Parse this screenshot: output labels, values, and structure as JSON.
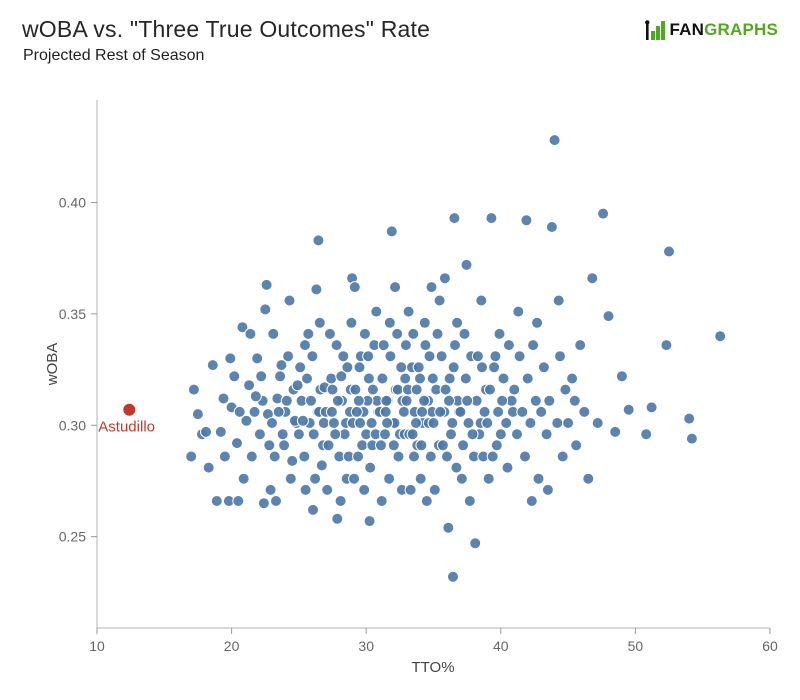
{
  "header": {
    "title": "wOBA vs. \"Three True Outcomes\" Rate",
    "subtitle": "Projected Rest of Season",
    "logo": {
      "part1": "FAN",
      "part2": "GRAPHS",
      "green": "#52a821",
      "black": "#111111"
    }
  },
  "chart_data": {
    "type": "scatter",
    "title": "wOBA vs. \"Three True Outcomes\" Rate",
    "subtitle": "Projected Rest of Season",
    "xlabel": "TTO%",
    "ylabel": "wOBA",
    "xlim": [
      10,
      60
    ],
    "ylim": [
      0.209,
      0.446
    ],
    "xticks": [
      10,
      20,
      30,
      40,
      50,
      60
    ],
    "yticks": [
      0.25,
      0.3,
      0.35,
      0.4
    ],
    "grid": false,
    "legend": "none",
    "point_color": "#4e79a7",
    "point_stroke": "#ffffff",
    "axis_color": "#b3b3b3",
    "highlight": {
      "label": "Astudillo",
      "x": 12.4,
      "y": 0.307,
      "color": "#c0392b"
    },
    "points": [
      [
        17.0,
        0.286
      ],
      [
        17.2,
        0.316
      ],
      [
        17.8,
        0.296
      ],
      [
        18.3,
        0.281
      ],
      [
        18.6,
        0.327
      ],
      [
        18.9,
        0.266
      ],
      [
        17.5,
        0.305
      ],
      [
        18.1,
        0.297
      ],
      [
        19.2,
        0.297
      ],
      [
        19.5,
        0.286
      ],
      [
        19.8,
        0.266
      ],
      [
        20.0,
        0.308
      ],
      [
        20.2,
        0.322
      ],
      [
        20.4,
        0.292
      ],
      [
        20.6,
        0.306
      ],
      [
        20.8,
        0.344
      ],
      [
        19.4,
        0.312
      ],
      [
        20.9,
        0.276
      ],
      [
        19.9,
        0.33
      ],
      [
        20.5,
        0.266
      ],
      [
        21.1,
        0.302
      ],
      [
        21.3,
        0.318
      ],
      [
        21.5,
        0.286
      ],
      [
        21.7,
        0.306
      ],
      [
        21.9,
        0.33
      ],
      [
        22.1,
        0.296
      ],
      [
        22.3,
        0.311
      ],
      [
        22.5,
        0.352
      ],
      [
        22.7,
        0.305
      ],
      [
        22.9,
        0.271
      ],
      [
        21.4,
        0.341
      ],
      [
        22.2,
        0.322
      ],
      [
        22.8,
        0.291
      ],
      [
        21.8,
        0.313
      ],
      [
        22.4,
        0.265
      ],
      [
        22.6,
        0.363
      ],
      [
        23.0,
        0.301
      ],
      [
        23.2,
        0.286
      ],
      [
        23.4,
        0.312
      ],
      [
        23.6,
        0.322
      ],
      [
        23.8,
        0.296
      ],
      [
        24.0,
        0.306
      ],
      [
        24.2,
        0.331
      ],
      [
        24.4,
        0.276
      ],
      [
        24.6,
        0.316
      ],
      [
        24.8,
        0.301
      ],
      [
        23.1,
        0.341
      ],
      [
        23.3,
        0.266
      ],
      [
        23.5,
        0.306
      ],
      [
        23.7,
        0.327
      ],
      [
        23.9,
        0.291
      ],
      [
        24.1,
        0.311
      ],
      [
        24.3,
        0.356
      ],
      [
        24.5,
        0.284
      ],
      [
        24.7,
        0.302
      ],
      [
        24.9,
        0.318
      ],
      [
        25.0,
        0.296
      ],
      [
        25.2,
        0.311
      ],
      [
        25.4,
        0.286
      ],
      [
        25.6,
        0.321
      ],
      [
        25.8,
        0.301
      ],
      [
        26.0,
        0.331
      ],
      [
        26.2,
        0.276
      ],
      [
        26.4,
        0.306
      ],
      [
        26.6,
        0.316
      ],
      [
        26.8,
        0.291
      ],
      [
        25.1,
        0.326
      ],
      [
        25.3,
        0.302
      ],
      [
        25.5,
        0.271
      ],
      [
        25.7,
        0.341
      ],
      [
        25.9,
        0.311
      ],
      [
        26.1,
        0.296
      ],
      [
        26.3,
        0.361
      ],
      [
        26.5,
        0.306
      ],
      [
        26.7,
        0.282
      ],
      [
        26.9,
        0.317
      ],
      [
        25.45,
        0.336
      ],
      [
        26.05,
        0.262
      ],
      [
        26.55,
        0.346
      ],
      [
        26.85,
        0.301
      ],
      [
        26.45,
        0.383
      ],
      [
        27.0,
        0.306
      ],
      [
        27.2,
        0.291
      ],
      [
        27.4,
        0.321
      ],
      [
        27.6,
        0.301
      ],
      [
        27.8,
        0.336
      ],
      [
        28.0,
        0.286
      ],
      [
        28.2,
        0.311
      ],
      [
        28.4,
        0.296
      ],
      [
        28.6,
        0.326
      ],
      [
        28.8,
        0.306
      ],
      [
        27.1,
        0.271
      ],
      [
        27.3,
        0.341
      ],
      [
        27.5,
        0.316
      ],
      [
        27.7,
        0.296
      ],
      [
        27.9,
        0.311
      ],
      [
        28.1,
        0.266
      ],
      [
        28.3,
        0.331
      ],
      [
        28.5,
        0.301
      ],
      [
        28.7,
        0.286
      ],
      [
        28.9,
        0.346
      ],
      [
        27.45,
        0.306
      ],
      [
        28.15,
        0.322
      ],
      [
        28.55,
        0.276
      ],
      [
        28.85,
        0.316
      ],
      [
        27.85,
        0.258
      ],
      [
        28.95,
        0.366
      ],
      [
        29.0,
        0.301
      ],
      [
        29.2,
        0.316
      ],
      [
        29.4,
        0.286
      ],
      [
        29.6,
        0.331
      ],
      [
        29.8,
        0.306
      ],
      [
        30.0,
        0.296
      ],
      [
        30.2,
        0.321
      ],
      [
        30.4,
        0.301
      ],
      [
        30.6,
        0.336
      ],
      [
        30.8,
        0.311
      ],
      [
        29.1,
        0.276
      ],
      [
        29.3,
        0.306
      ],
      [
        29.5,
        0.326
      ],
      [
        29.7,
        0.291
      ],
      [
        29.9,
        0.341
      ],
      [
        30.1,
        0.311
      ],
      [
        30.3,
        0.281
      ],
      [
        30.5,
        0.316
      ],
      [
        30.7,
        0.296
      ],
      [
        30.9,
        0.306
      ],
      [
        29.15,
        0.362
      ],
      [
        29.55,
        0.301
      ],
      [
        29.85,
        0.271
      ],
      [
        30.15,
        0.331
      ],
      [
        30.45,
        0.291
      ],
      [
        30.75,
        0.351
      ],
      [
        30.25,
        0.257
      ],
      [
        29.45,
        0.311
      ],
      [
        31.0,
        0.306
      ],
      [
        31.2,
        0.321
      ],
      [
        31.4,
        0.296
      ],
      [
        31.6,
        0.311
      ],
      [
        31.8,
        0.331
      ],
      [
        32.0,
        0.301
      ],
      [
        32.2,
        0.316
      ],
      [
        32.4,
        0.286
      ],
      [
        32.6,
        0.326
      ],
      [
        32.8,
        0.306
      ],
      [
        31.1,
        0.291
      ],
      [
        31.3,
        0.336
      ],
      [
        31.5,
        0.311
      ],
      [
        31.7,
        0.276
      ],
      [
        31.9,
        0.387
      ],
      [
        32.1,
        0.301
      ],
      [
        32.3,
        0.341
      ],
      [
        32.5,
        0.296
      ],
      [
        32.7,
        0.311
      ],
      [
        32.9,
        0.321
      ],
      [
        31.15,
        0.266
      ],
      [
        31.45,
        0.306
      ],
      [
        31.75,
        0.346
      ],
      [
        32.05,
        0.291
      ],
      [
        32.35,
        0.316
      ],
      [
        32.65,
        0.271
      ],
      [
        32.95,
        0.336
      ],
      [
        31.55,
        0.301
      ],
      [
        32.15,
        0.362
      ],
      [
        32.85,
        0.296
      ],
      [
        33.0,
        0.311
      ],
      [
        33.2,
        0.296
      ],
      [
        33.4,
        0.326
      ],
      [
        33.6,
        0.306
      ],
      [
        33.8,
        0.291
      ],
      [
        34.0,
        0.321
      ],
      [
        34.2,
        0.301
      ],
      [
        34.4,
        0.336
      ],
      [
        34.6,
        0.311
      ],
      [
        34.8,
        0.286
      ],
      [
        33.1,
        0.316
      ],
      [
        33.3,
        0.271
      ],
      [
        33.5,
        0.341
      ],
      [
        33.7,
        0.301
      ],
      [
        33.9,
        0.326
      ],
      [
        34.1,
        0.291
      ],
      [
        34.3,
        0.311
      ],
      [
        34.5,
        0.266
      ],
      [
        34.7,
        0.331
      ],
      [
        34.9,
        0.306
      ],
      [
        33.15,
        0.351
      ],
      [
        33.45,
        0.296
      ],
      [
        33.75,
        0.316
      ],
      [
        34.05,
        0.276
      ],
      [
        34.35,
        0.346
      ],
      [
        34.65,
        0.301
      ],
      [
        34.95,
        0.321
      ],
      [
        33.55,
        0.286
      ],
      [
        34.15,
        0.306
      ],
      [
        34.85,
        0.362
      ],
      [
        35.0,
        0.301
      ],
      [
        35.2,
        0.316
      ],
      [
        35.4,
        0.291
      ],
      [
        35.6,
        0.331
      ],
      [
        35.8,
        0.306
      ],
      [
        36.0,
        0.286
      ],
      [
        36.2,
        0.321
      ],
      [
        36.4,
        0.301
      ],
      [
        36.6,
        0.336
      ],
      [
        36.8,
        0.311
      ],
      [
        35.1,
        0.271
      ],
      [
        35.3,
        0.341
      ],
      [
        35.5,
        0.306
      ],
      [
        35.7,
        0.291
      ],
      [
        35.9,
        0.316
      ],
      [
        36.1,
        0.254
      ],
      [
        36.3,
        0.296
      ],
      [
        36.5,
        0.326
      ],
      [
        36.7,
        0.281
      ],
      [
        36.9,
        0.306
      ],
      [
        35.45,
        0.356
      ],
      [
        35.85,
        0.366
      ],
      [
        36.15,
        0.311
      ],
      [
        36.45,
        0.232
      ],
      [
        36.75,
        0.346
      ],
      [
        36.55,
        0.393
      ],
      [
        37.0,
        0.306
      ],
      [
        37.2,
        0.291
      ],
      [
        37.4,
        0.321
      ],
      [
        37.6,
        0.301
      ],
      [
        37.8,
        0.331
      ],
      [
        38.0,
        0.286
      ],
      [
        38.2,
        0.311
      ],
      [
        38.4,
        0.296
      ],
      [
        38.6,
        0.326
      ],
      [
        38.8,
        0.306
      ],
      [
        37.1,
        0.276
      ],
      [
        37.3,
        0.341
      ],
      [
        37.5,
        0.311
      ],
      [
        37.7,
        0.266
      ],
      [
        37.9,
        0.296
      ],
      [
        38.1,
        0.247
      ],
      [
        38.3,
        0.331
      ],
      [
        38.5,
        0.301
      ],
      [
        38.7,
        0.286
      ],
      [
        38.9,
        0.316
      ],
      [
        37.45,
        0.372
      ],
      [
        38.55,
        0.356
      ],
      [
        39.0,
        0.301
      ],
      [
        39.2,
        0.316
      ],
      [
        39.4,
        0.286
      ],
      [
        39.6,
        0.331
      ],
      [
        39.8,
        0.306
      ],
      [
        40.0,
        0.296
      ],
      [
        40.2,
        0.321
      ],
      [
        40.4,
        0.301
      ],
      [
        40.6,
        0.336
      ],
      [
        40.8,
        0.311
      ],
      [
        39.1,
        0.276
      ],
      [
        39.3,
        0.393
      ],
      [
        39.5,
        0.326
      ],
      [
        39.7,
        0.291
      ],
      [
        39.9,
        0.341
      ],
      [
        40.1,
        0.311
      ],
      [
        40.5,
        0.281
      ],
      [
        40.9,
        0.306
      ],
      [
        41.0,
        0.316
      ],
      [
        41.2,
        0.296
      ],
      [
        41.4,
        0.331
      ],
      [
        41.6,
        0.306
      ],
      [
        41.8,
        0.286
      ],
      [
        42.0,
        0.321
      ],
      [
        42.2,
        0.301
      ],
      [
        42.4,
        0.336
      ],
      [
        42.6,
        0.311
      ],
      [
        42.8,
        0.276
      ],
      [
        41.3,
        0.351
      ],
      [
        41.9,
        0.392
      ],
      [
        42.3,
        0.266
      ],
      [
        42.7,
        0.346
      ],
      [
        43.0,
        0.306
      ],
      [
        43.2,
        0.326
      ],
      [
        43.4,
        0.296
      ],
      [
        43.6,
        0.311
      ],
      [
        43.8,
        0.389
      ],
      [
        44.0,
        0.428
      ],
      [
        44.2,
        0.301
      ],
      [
        44.4,
        0.331
      ],
      [
        44.6,
        0.286
      ],
      [
        44.8,
        0.316
      ],
      [
        43.5,
        0.271
      ],
      [
        44.3,
        0.356
      ],
      [
        45.0,
        0.301
      ],
      [
        45.3,
        0.321
      ],
      [
        45.6,
        0.291
      ],
      [
        45.9,
        0.336
      ],
      [
        46.2,
        0.306
      ],
      [
        46.5,
        0.276
      ],
      [
        46.8,
        0.366
      ],
      [
        45.5,
        0.311
      ],
      [
        47.2,
        0.301
      ],
      [
        47.6,
        0.395
      ],
      [
        48.0,
        0.349
      ],
      [
        48.5,
        0.297
      ],
      [
        49.0,
        0.322
      ],
      [
        49.5,
        0.307
      ],
      [
        50.8,
        0.296
      ],
      [
        51.2,
        0.308
      ],
      [
        52.3,
        0.336
      ],
      [
        52.5,
        0.378
      ],
      [
        54.0,
        0.303
      ],
      [
        54.2,
        0.294
      ],
      [
        56.3,
        0.34
      ]
    ]
  }
}
